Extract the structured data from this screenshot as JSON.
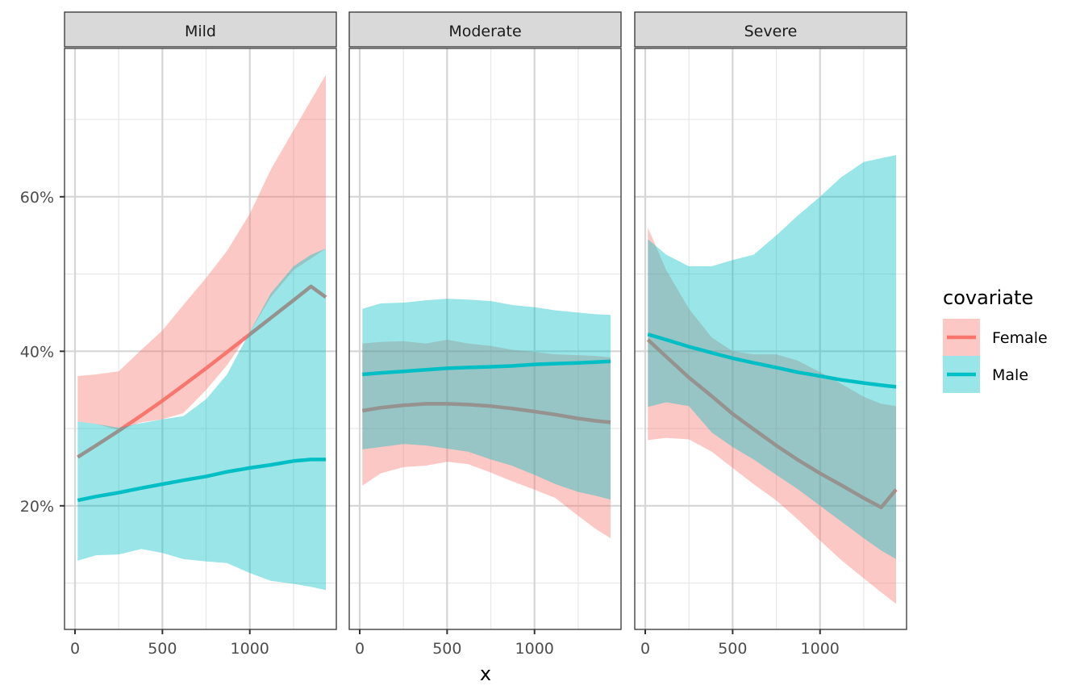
{
  "chart_data": {
    "type": "line",
    "subtype": "faceted line with confidence ribbons",
    "title": "",
    "xlabel": "x",
    "ylabel": "",
    "xlim": [
      -60,
      1495
    ],
    "ylim": [
      4.0,
      79.2
    ],
    "x_ticks": [
      0,
      500,
      1000
    ],
    "x_tick_labels": [
      "0",
      "500",
      "1000"
    ],
    "x_minor_ticks": [
      250,
      750,
      1250
    ],
    "y_ticks": [
      20,
      40,
      60
    ],
    "y_tick_labels": [
      "20%",
      "40%",
      "60%"
    ],
    "y_minor_ticks": [
      10,
      30,
      50,
      70
    ],
    "grid": true,
    "legend": {
      "title": "covariate",
      "position": "right",
      "entries": [
        {
          "label": "Female",
          "color": "#F8766D",
          "fill": "#F8766D"
        },
        {
          "label": "Male",
          "color": "#00BFC4",
          "fill": "#00BFC4"
        }
      ]
    },
    "colors": {
      "Female": "#F8766D",
      "Male": "#00BFC4",
      "strip_bg": "#D9D9D9",
      "border": "#333333",
      "grid_major": "#D6D6D6",
      "grid_minor": "#E6E6E6"
    },
    "ribbon_alpha": 0.4,
    "facets": [
      {
        "label": "Mild",
        "series": [
          {
            "name": "Female",
            "x": [
              15,
              120,
              250,
              380,
              500,
              620,
              750,
              870,
              1000,
              1120,
              1250,
              1350,
              1435
            ],
            "y": [
              26.3,
              27.8,
              29.7,
              31.7,
              33.6,
              35.6,
              37.8,
              39.9,
              42.2,
              44.3,
              46.6,
              48.4,
              47.0
            ],
            "lower": [
              30.9,
              30.6,
              29.8,
              30.8,
              31.2,
              32.0,
              35.0,
              38.2,
              42.5,
              47.0,
              50.5,
              52.0,
              53.3
            ],
            "upper": [
              36.8,
              37.0,
              37.4,
              40.2,
              42.7,
              46.0,
              49.5,
              53.0,
              57.8,
              63.5,
              68.6,
              72.5,
              75.8
            ]
          },
          {
            "name": "Male",
            "x": [
              15,
              120,
              250,
              380,
              500,
              620,
              750,
              870,
              1000,
              1120,
              1250,
              1350,
              1435
            ],
            "y": [
              20.7,
              21.2,
              21.7,
              22.3,
              22.8,
              23.3,
              23.8,
              24.4,
              24.9,
              25.3,
              25.8,
              26.0,
              26.0
            ],
            "lower": [
              12.9,
              13.6,
              13.7,
              14.4,
              13.9,
              13.1,
              12.8,
              12.6,
              11.3,
              10.3,
              9.9,
              9.5,
              9.1
            ],
            "upper": [
              30.9,
              30.6,
              30.1,
              30.7,
              31.2,
              31.6,
              33.8,
              37.0,
              42.5,
              47.5,
              51.0,
              52.5,
              53.3
            ]
          }
        ]
      },
      {
        "label": "Moderate",
        "series": [
          {
            "name": "Female",
            "x": [
              15,
              120,
              250,
              380,
              500,
              620,
              750,
              870,
              1000,
              1120,
              1250,
              1350,
              1435
            ],
            "y": [
              32.3,
              32.7,
              33.0,
              33.2,
              33.2,
              33.1,
              32.9,
              32.6,
              32.2,
              31.8,
              31.3,
              31.0,
              30.8
            ],
            "lower": [
              22.6,
              24.2,
              25.0,
              25.2,
              25.7,
              25.4,
              24.3,
              23.2,
              22.1,
              21.0,
              18.7,
              17.0,
              15.8
            ],
            "upper": [
              41.0,
              41.2,
              41.3,
              41.0,
              41.5,
              41.0,
              40.7,
              40.2,
              39.9,
              39.6,
              39.5,
              39.4,
              39.2
            ]
          },
          {
            "name": "Male",
            "x": [
              15,
              120,
              250,
              380,
              500,
              620,
              750,
              870,
              1000,
              1120,
              1250,
              1350,
              1435
            ],
            "y": [
              37.0,
              37.2,
              37.4,
              37.6,
              37.8,
              37.9,
              38.0,
              38.1,
              38.3,
              38.4,
              38.5,
              38.6,
              38.7
            ],
            "lower": [
              27.3,
              27.6,
              28.0,
              27.8,
              27.4,
              27.0,
              26.0,
              25.2,
              24.0,
              22.8,
              21.8,
              21.3,
              20.8
            ],
            "upper": [
              45.5,
              46.2,
              46.3,
              46.6,
              46.8,
              46.7,
              46.5,
              46.0,
              45.7,
              45.3,
              45.0,
              44.8,
              44.7
            ]
          }
        ]
      },
      {
        "label": "Severe",
        "series": [
          {
            "name": "Female",
            "x": [
              15,
              120,
              250,
              380,
              500,
              620,
              750,
              870,
              1000,
              1120,
              1250,
              1350,
              1435
            ],
            "y": [
              41.5,
              39.3,
              36.6,
              34.2,
              31.9,
              29.9,
              27.8,
              26.0,
              24.2,
              22.7,
              21.0,
              19.8,
              22.1
            ],
            "lower": [
              28.5,
              28.8,
              28.6,
              27.0,
              24.9,
              22.8,
              20.7,
              18.3,
              15.5,
              13.0,
              10.6,
              8.8,
              7.3
            ],
            "upper": [
              56.0,
              50.5,
              45.5,
              41.8,
              40.0,
              39.6,
              39.6,
              38.8,
              37.3,
              35.8,
              34.1,
              33.2,
              32.9
            ]
          },
          {
            "name": "Male",
            "x": [
              15,
              120,
              250,
              380,
              500,
              620,
              750,
              870,
              1000,
              1120,
              1250,
              1350,
              1435
            ],
            "y": [
              42.2,
              41.5,
              40.6,
              39.8,
              39.1,
              38.5,
              37.9,
              37.3,
              36.8,
              36.3,
              35.9,
              35.6,
              35.4
            ],
            "lower": [
              32.8,
              33.4,
              32.9,
              29.5,
              27.6,
              26.0,
              24.0,
              22.2,
              20.0,
              18.0,
              15.8,
              14.2,
              13.1
            ],
            "upper": [
              54.5,
              52.5,
              51.0,
              51.0,
              51.8,
              52.5,
              55.0,
              57.5,
              60.0,
              62.5,
              64.5,
              65.0,
              65.4
            ]
          }
        ]
      }
    ]
  }
}
